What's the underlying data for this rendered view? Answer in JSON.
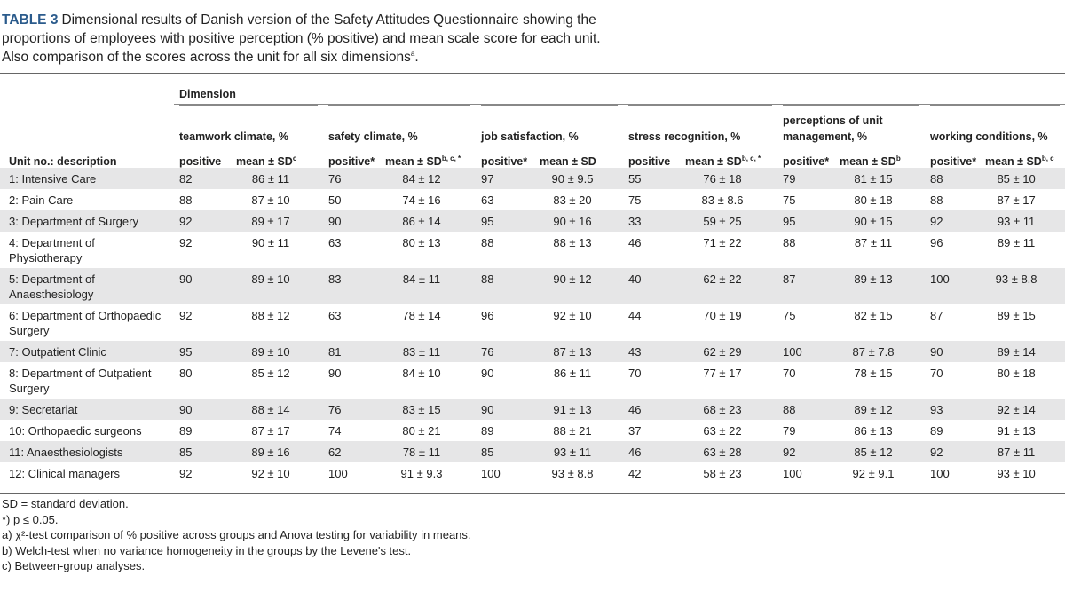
{
  "caption": {
    "label": "TABLE 3",
    "text": "Dimensional results of Danish version of the Safety Attitudes Questionnaire showing the proportions of employees with positive perception (% positive) and mean scale score for each unit. Also comparison of the scores across the unit for all six dimensions",
    "sup": "a",
    "end": "."
  },
  "table": {
    "dimension_label": "Dimension",
    "unit_header": "Unit no.: description",
    "groups": [
      {
        "name": "teamwork climate, %",
        "subheaders": [
          {
            "text": "positive"
          },
          {
            "text": "mean ± SD",
            "sup": "c"
          }
        ]
      },
      {
        "name": "safety climate, %",
        "subheaders": [
          {
            "text": "positive*"
          },
          {
            "text": "mean ± SD",
            "sup": "b, c, *"
          }
        ]
      },
      {
        "name": "job satisfaction, %",
        "subheaders": [
          {
            "text": "positive*"
          },
          {
            "text": "mean ± SD"
          }
        ]
      },
      {
        "name": "stress recognition, %",
        "subheaders": [
          {
            "text": "positive"
          },
          {
            "text": "mean ± SD",
            "sup": "b, c, *"
          }
        ]
      },
      {
        "name": "perceptions of unit management, %",
        "subheaders": [
          {
            "text": "positive*"
          },
          {
            "text": "mean ± SD",
            "sup": "b"
          }
        ]
      },
      {
        "name": "working conditions, %",
        "subheaders": [
          {
            "text": "positive*"
          },
          {
            "text": "mean ± SD",
            "sup": "b, c"
          }
        ]
      }
    ],
    "rows": [
      {
        "unit": "1: Intensive Care",
        "cells": [
          82,
          "86 ± 11",
          76,
          "84 ± 12",
          97,
          "90 ± 9.5",
          55,
          "76 ± 18",
          79,
          "81 ± 15",
          88,
          "85 ± 10"
        ]
      },
      {
        "unit": "2: Pain Care",
        "cells": [
          88,
          "87 ± 10",
          50,
          "74 ± 16",
          63,
          "83 ± 20",
          75,
          "83 ± 8.6",
          75,
          "80 ± 18",
          88,
          "87 ± 17"
        ]
      },
      {
        "unit": "3: Department of Surgery",
        "cells": [
          92,
          "89 ± 17",
          90,
          "86 ± 14",
          95,
          "90 ± 16",
          33,
          "59 ± 25",
          95,
          "90 ± 15",
          92,
          "93 ± 11"
        ]
      },
      {
        "unit": "4: Department of Physiotherapy",
        "cells": [
          92,
          "90 ± 11",
          63,
          "80 ± 13",
          88,
          "88 ± 13",
          46,
          "71 ± 22",
          88,
          "87 ± 11",
          96,
          "89 ± 11"
        ]
      },
      {
        "unit": "5: Department of Anaesthesiology",
        "cells": [
          90,
          "89 ± 10",
          83,
          "84 ± 11",
          88,
          "90 ± 12",
          40,
          "62 ± 22",
          87,
          "89 ± 13",
          100,
          "93 ± 8.8"
        ]
      },
      {
        "unit": "6: Department of Orthopaedic Surgery",
        "cells": [
          92,
          "88 ± 12",
          63,
          "78 ± 14",
          96,
          "92 ± 10",
          44,
          "70 ± 19",
          75,
          "82 ± 15",
          87,
          "89 ± 15"
        ]
      },
      {
        "unit": "7: Outpatient Clinic",
        "cells": [
          95,
          "89 ± 10",
          81,
          "83 ± 11",
          76,
          "87 ± 13",
          43,
          "62 ± 29",
          100,
          "87 ± 7.8",
          90,
          "89 ± 14"
        ]
      },
      {
        "unit": "8: Department of Outpatient Surgery",
        "cells": [
          80,
          "85 ± 12",
          90,
          "84 ± 10",
          90,
          "86 ± 11",
          70,
          "77 ± 17",
          70,
          "78 ± 15",
          70,
          "80 ± 18"
        ]
      },
      {
        "unit": "9: Secretariat",
        "cells": [
          90,
          "88 ± 14",
          76,
          "83 ± 15",
          90,
          "91 ± 13",
          46,
          "68 ± 23",
          88,
          "89 ± 12",
          93,
          "92 ± 14"
        ]
      },
      {
        "unit": "10: Orthopaedic surgeons",
        "cells": [
          89,
          "87 ± 17",
          74,
          "80 ± 21",
          89,
          "88 ± 21",
          37,
          "63 ± 22",
          79,
          "86 ± 13",
          89,
          "91 ± 13"
        ]
      },
      {
        "unit": "11: Anaesthesiologists",
        "cells": [
          85,
          "89 ± 16",
          62,
          "78 ± 11",
          85,
          "93 ± 11",
          46,
          "63 ± 28",
          92,
          "85 ± 12",
          92,
          "87 ± 11"
        ]
      },
      {
        "unit": "12: Clinical managers",
        "cells": [
          92,
          "92 ± 10",
          100,
          "91 ± 9.3",
          100,
          "93 ± 8.8",
          42,
          "58 ± 23",
          100,
          "92 ± 9.1",
          100,
          "93 ± 10"
        ]
      }
    ]
  },
  "footnotes": [
    "SD = standard deviation.",
    "*) p ≤ 0.05.",
    "a) χ²-test comparison of % positive across groups and Anova testing for variability in means.",
    "b) Welch-test when no variance homogeneity in the groups by the Levene's test.",
    "c) Between-group analyses."
  ]
}
